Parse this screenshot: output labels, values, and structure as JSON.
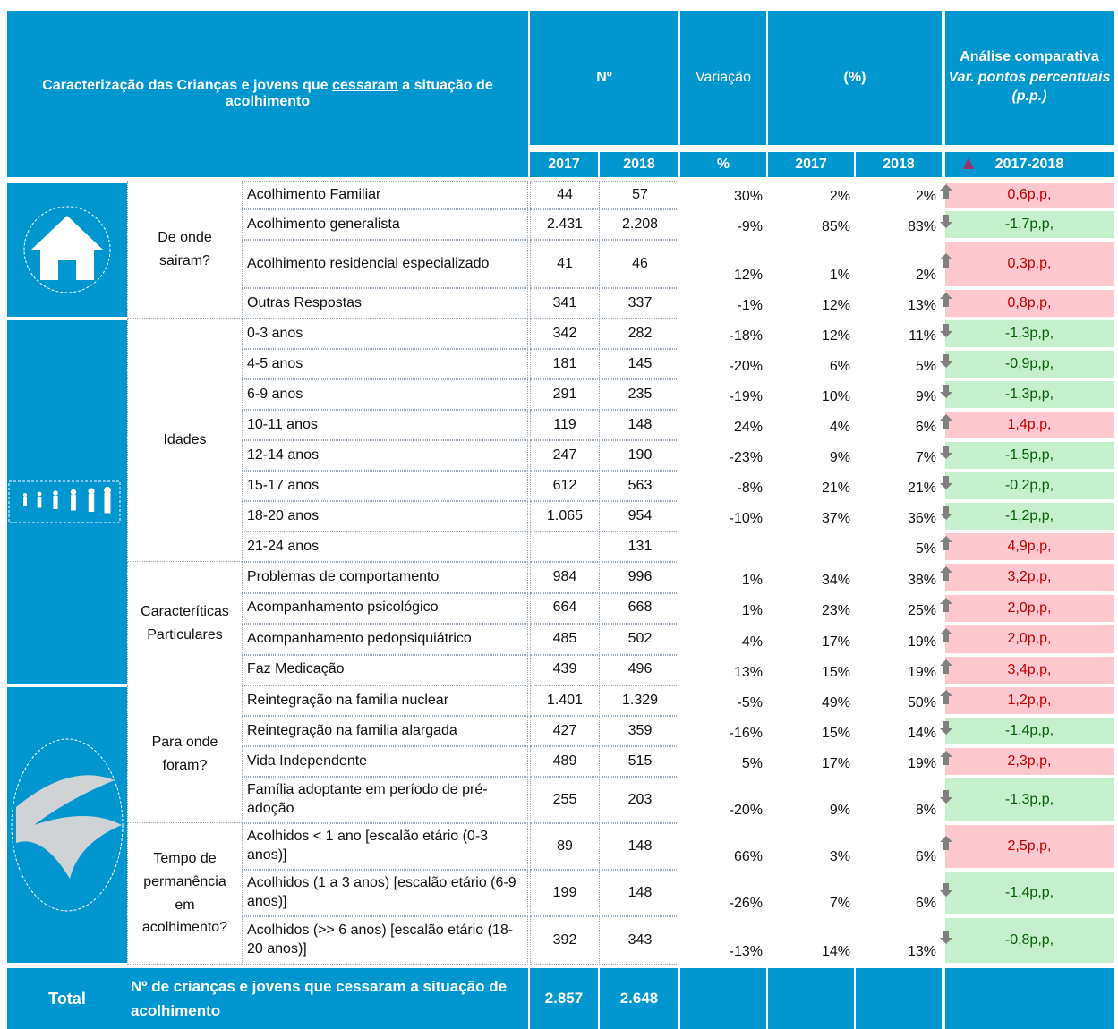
{
  "header": {
    "title_parts": [
      "Caracterização das Crianças e jovens que ",
      "cessaram",
      " a situação de acolhimento"
    ],
    "n": "Nº",
    "variacao": "Variação",
    "pct": "(%)",
    "analise_title": "Análise comparativa",
    "analise_subtitle": "Var. pontos percentuais (p.p.)"
  },
  "subheader": {
    "n2017": "2017",
    "n2018": "2018",
    "var": "%",
    "p2017": "2017",
    "p2018": "2018",
    "period": "2017-2018"
  },
  "groups": [
    {
      "label": "De onde sairam?",
      "rows": [
        [
          "Acolhimento Familiar",
          "44",
          "57",
          "30%",
          "2%",
          "2%",
          "0,6p,p,"
        ],
        [
          "Acolhimento generalista",
          "2.431",
          "2.208",
          "-9%",
          "85%",
          "83%",
          "-1,7p,p,"
        ],
        [
          "Acolhimento residencial especializado",
          "41",
          "46",
          "12%",
          "1%",
          "2%",
          "0,3p,p,"
        ],
        [
          "Outras Respostas",
          "341",
          "337",
          "-1%",
          "12%",
          "13%",
          "0,8p,p,"
        ]
      ]
    },
    {
      "label": "Idades",
      "rows": [
        [
          "0-3 anos",
          "342",
          "282",
          "-18%",
          "12%",
          "11%",
          "-1,3p,p,"
        ],
        [
          "4-5 anos",
          "181",
          "145",
          "-20%",
          "6%",
          "5%",
          "-0,9p,p,"
        ],
        [
          "6-9 anos",
          "291",
          "235",
          "-19%",
          "10%",
          "9%",
          "-1,3p,p,"
        ],
        [
          "10-11 anos",
          "119",
          "148",
          "24%",
          "4%",
          "6%",
          "1,4p,p,"
        ],
        [
          "12-14 anos",
          "247",
          "190",
          "-23%",
          "9%",
          "7%",
          "-1,5p,p,"
        ],
        [
          "15-17 anos",
          "612",
          "563",
          "-8%",
          "21%",
          "21%",
          "-0,2p,p,"
        ],
        [
          "18-20 anos",
          "1.065",
          "954",
          "-10%",
          "37%",
          "36%",
          "-1,2p,p,"
        ],
        [
          "21-24 anos",
          null,
          "131",
          null,
          null,
          "5%",
          "4,9p,p,"
        ]
      ]
    },
    {
      "label": "Caracteríticas Particulares",
      "rows": [
        [
          "Problemas de comportamento",
          "984",
          "996",
          "1%",
          "34%",
          "38%",
          "3,2p,p,"
        ],
        [
          "Acompanhamento psicológico",
          "664",
          "668",
          "1%",
          "23%",
          "25%",
          "2,0p,p,"
        ],
        [
          "Acompanhamento pedopsiquiátrico",
          "485",
          "502",
          "4%",
          "17%",
          "19%",
          "2,0p,p,"
        ],
        [
          "Faz Medicação",
          "439",
          "496",
          "13%",
          "15%",
          "19%",
          "3,4p,p,"
        ]
      ]
    },
    {
      "label": "Para onde foram?",
      "rows": [
        [
          "Reintegração na familia nuclear",
          "1.401",
          "1.329",
          "-5%",
          "49%",
          "50%",
          "1,2p,p,"
        ],
        [
          "Reintegração na familia alargada",
          "427",
          "359",
          "-16%",
          "15%",
          "14%",
          "-1,4p,p,"
        ],
        [
          "Vida Independente",
          "489",
          "515",
          "5%",
          "17%",
          "19%",
          "2,3p,p,"
        ],
        [
          "Família adoptante em período de pré-adoção",
          "255",
          "203",
          "-20%",
          "9%",
          "8%",
          "-1,3p,p,"
        ]
      ]
    },
    {
      "label": "Tempo de permanência em acolhimento?",
      "rows": [
        [
          "Acolhidos < 1 ano [escalão etário (0-3 anos)]",
          "89",
          "148",
          "66%",
          "3%",
          "6%",
          "2,5p,p,"
        ],
        [
          "Acolhidos (1 a 3 anos) [escalão etário (6-9 anos)]",
          "199",
          "148",
          "-26%",
          "7%",
          "6%",
          "-1,4p,p,"
        ],
        [
          "Acolhidos (>> 6 anos) [escalão etário (18-20 anos)]",
          "392",
          "343",
          "-13%",
          "14%",
          "13%",
          "-0,8p,p,"
        ]
      ]
    }
  ],
  "total": {
    "label": "Total",
    "description": "Nº de crianças e jovens que cessaram a situação de acolhimento",
    "n2017": "2.857",
    "n2018": "2.648"
  }
}
